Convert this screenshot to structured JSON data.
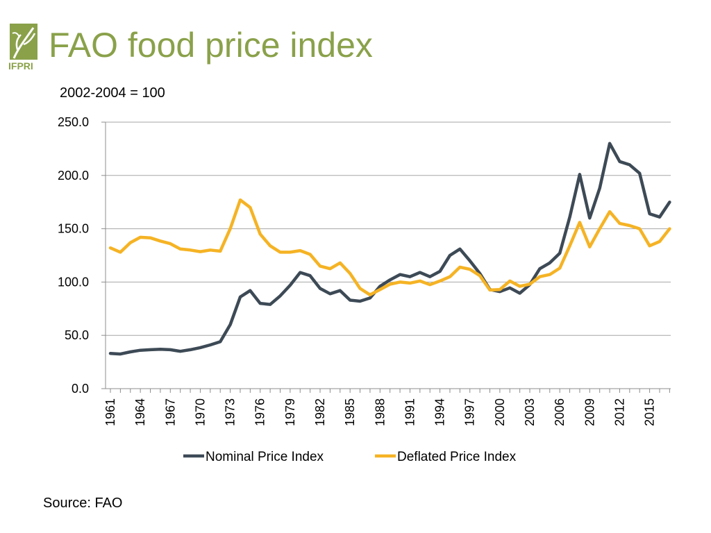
{
  "slide": {
    "title": "FAO food price index",
    "subtitle": "2002-2004 = 100",
    "source": "Source: FAO",
    "logo_text": "IFPRI",
    "logo_color": "#8aa14a"
  },
  "chart_data": {
    "type": "line",
    "title": "",
    "xlabel": "",
    "ylabel": "",
    "ylim": [
      0,
      250
    ],
    "ytick_values": [
      0,
      50,
      100,
      150,
      200,
      250
    ],
    "ytick_labels": [
      "0.0",
      "50.0",
      "100.0",
      "150.0",
      "200.0",
      "250.0"
    ],
    "xtick_labels": [
      "1961",
      "1964",
      "1967",
      "1970",
      "1973",
      "1976",
      "1979",
      "1982",
      "1985",
      "1988",
      "1991",
      "1994",
      "1997",
      "2000",
      "2003",
      "2006",
      "2009",
      "2012",
      "2015"
    ],
    "grid": true,
    "legend": "bottom",
    "x": [
      1961,
      1962,
      1963,
      1964,
      1965,
      1966,
      1967,
      1968,
      1969,
      1970,
      1971,
      1972,
      1973,
      1974,
      1975,
      1976,
      1977,
      1978,
      1979,
      1980,
      1981,
      1982,
      1983,
      1984,
      1985,
      1986,
      1987,
      1988,
      1989,
      1990,
      1991,
      1992,
      1993,
      1994,
      1995,
      1996,
      1997,
      1998,
      1999,
      2000,
      2001,
      2002,
      2003,
      2004,
      2005,
      2006,
      2007,
      2008,
      2009,
      2010,
      2011,
      2012,
      2013,
      2014,
      2015,
      2016,
      2017
    ],
    "series": [
      {
        "name": "Nominal Price Index",
        "color": "#3d4a56",
        "values": [
          33,
          32.5,
          34.5,
          36,
          36.5,
          37,
          36.5,
          35,
          36.5,
          38.5,
          41,
          44,
          60,
          86,
          92,
          80,
          79,
          87,
          97,
          109,
          106,
          94,
          89,
          92,
          83,
          82,
          85,
          96,
          102,
          107,
          105,
          109,
          105,
          110,
          125,
          131,
          120,
          108,
          93,
          91,
          94.5,
          89.5,
          97.5,
          112.5,
          118,
          127,
          161,
          201,
          160,
          188,
          230,
          213,
          210,
          202,
          164,
          161,
          175
        ]
      },
      {
        "name": "Deflated Price Index",
        "color": "#f5b324",
        "values": [
          132,
          128,
          137,
          142,
          141.5,
          138.5,
          136,
          131,
          130,
          128.5,
          130,
          129,
          150,
          177,
          170,
          145,
          134,
          128,
          128,
          129.5,
          126,
          115,
          112.5,
          118,
          108,
          94,
          88,
          93,
          98,
          100,
          99,
          101,
          97.5,
          101,
          105,
          114,
          112,
          106,
          92.5,
          93,
          101,
          96,
          98,
          105,
          107,
          113,
          134,
          156,
          133,
          150,
          166,
          155,
          153,
          150,
          134,
          138,
          150
        ]
      }
    ]
  }
}
